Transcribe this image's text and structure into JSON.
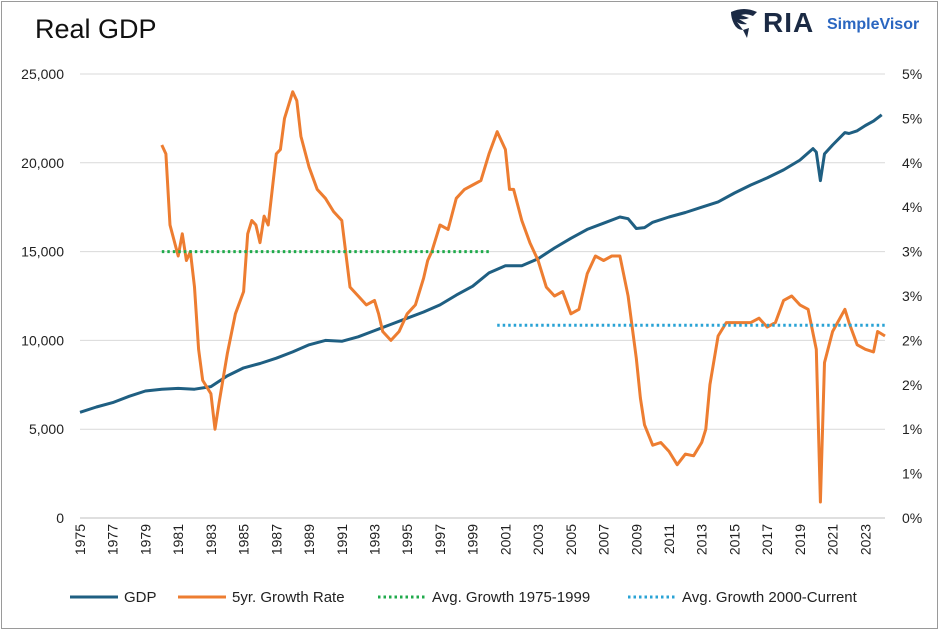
{
  "title": "Real GDP",
  "logo": {
    "brand": "RIA",
    "product": "SimpleVisor"
  },
  "chart_data": {
    "type": "line",
    "title": "Real GDP",
    "xlim": [
      1975,
      2024.2
    ],
    "ylim_left": [
      0,
      25000
    ],
    "ylim_right": [
      0,
      5
    ],
    "x_tick_labels": [
      "1975",
      "1977",
      "1979",
      "1981",
      "1983",
      "1985",
      "1987",
      "1989",
      "1991",
      "1993",
      "1995",
      "1997",
      "1999",
      "2001",
      "2003",
      "2005",
      "2007",
      "2009",
      "2011",
      "2013",
      "2015",
      "2017",
      "2019",
      "2021",
      "2023"
    ],
    "y_left_ticks": [
      "0",
      "5,000",
      "10,000",
      "15,000",
      "20,000",
      "25,000"
    ],
    "y_right_ticks": [
      "0%",
      "1%",
      "1%",
      "2%",
      "2%",
      "3%",
      "3%",
      "4%",
      "4%",
      "5%",
      "5%"
    ],
    "legend_position": "bottom",
    "grid": "horizontal",
    "series": [
      {
        "name": "GDP",
        "axis": "left",
        "color": "#1f5f82",
        "style": "solid",
        "points": [
          [
            1975,
            5950
          ],
          [
            1976,
            6250
          ],
          [
            1977,
            6500
          ],
          [
            1978,
            6850
          ],
          [
            1979,
            7150
          ],
          [
            1980,
            7250
          ],
          [
            1981,
            7300
          ],
          [
            1982,
            7250
          ],
          [
            1983,
            7400
          ],
          [
            1984,
            8000
          ],
          [
            1985,
            8450
          ],
          [
            1986,
            8700
          ],
          [
            1987,
            9000
          ],
          [
            1988,
            9350
          ],
          [
            1989,
            9750
          ],
          [
            1990,
            10000
          ],
          [
            1991,
            9950
          ],
          [
            1992,
            10200
          ],
          [
            1993,
            10550
          ],
          [
            1994,
            10900
          ],
          [
            1995,
            11250
          ],
          [
            1996,
            11600
          ],
          [
            1997,
            12000
          ],
          [
            1998,
            12550
          ],
          [
            1999,
            13050
          ],
          [
            2000,
            13800
          ],
          [
            2001,
            14200
          ],
          [
            2002,
            14200
          ],
          [
            2003,
            14600
          ],
          [
            2004,
            15200
          ],
          [
            2005,
            15750
          ],
          [
            2006,
            16250
          ],
          [
            2007,
            16600
          ],
          [
            2008,
            16950
          ],
          [
            2008.5,
            16850
          ],
          [
            2009,
            16300
          ],
          [
            2009.5,
            16350
          ],
          [
            2010,
            16650
          ],
          [
            2011,
            16950
          ],
          [
            2012,
            17200
          ],
          [
            2013,
            17500
          ],
          [
            2014,
            17800
          ],
          [
            2015,
            18300
          ],
          [
            2016,
            18750
          ],
          [
            2017,
            19150
          ],
          [
            2018,
            19600
          ],
          [
            2019,
            20150
          ],
          [
            2019.8,
            20800
          ],
          [
            2020,
            20600
          ],
          [
            2020.25,
            19000
          ],
          [
            2020.5,
            20500
          ],
          [
            2021,
            21000
          ],
          [
            2021.75,
            21700
          ],
          [
            2022,
            21650
          ],
          [
            2022.5,
            21800
          ],
          [
            2023,
            22100
          ],
          [
            2023.5,
            22350
          ],
          [
            2024,
            22700
          ]
        ]
      },
      {
        "name": "5yr. Growth Rate",
        "axis": "right",
        "color": "#ed7d31",
        "style": "solid",
        "points": [
          [
            1980,
            4.2
          ],
          [
            1980.25,
            4.1
          ],
          [
            1980.5,
            3.3
          ],
          [
            1981,
            2.95
          ],
          [
            1981.25,
            3.2
          ],
          [
            1981.5,
            2.9
          ],
          [
            1981.75,
            3.0
          ],
          [
            1982,
            2.6
          ],
          [
            1982.25,
            1.9
          ],
          [
            1982.5,
            1.55
          ],
          [
            1983,
            1.4
          ],
          [
            1983.25,
            1.0
          ],
          [
            1983.5,
            1.3
          ],
          [
            1984,
            1.85
          ],
          [
            1984.5,
            2.3
          ],
          [
            1985,
            2.55
          ],
          [
            1985.25,
            3.2
          ],
          [
            1985.5,
            3.35
          ],
          [
            1985.75,
            3.3
          ],
          [
            1986,
            3.1
          ],
          [
            1986.25,
            3.4
          ],
          [
            1986.5,
            3.3
          ],
          [
            1987,
            4.1
          ],
          [
            1987.25,
            4.15
          ],
          [
            1987.5,
            4.5
          ],
          [
            1988,
            4.8
          ],
          [
            1988.25,
            4.7
          ],
          [
            1988.5,
            4.3
          ],
          [
            1989,
            3.95
          ],
          [
            1989.5,
            3.7
          ],
          [
            1990,
            3.6
          ],
          [
            1990.5,
            3.45
          ],
          [
            1991,
            3.35
          ],
          [
            1991.5,
            2.6
          ],
          [
            1992,
            2.5
          ],
          [
            1992.5,
            2.4
          ],
          [
            1993,
            2.45
          ],
          [
            1993.25,
            2.3
          ],
          [
            1993.5,
            2.1
          ],
          [
            1994,
            2.0
          ],
          [
            1994.5,
            2.1
          ],
          [
            1995,
            2.3
          ],
          [
            1995.5,
            2.4
          ],
          [
            1996,
            2.7
          ],
          [
            1996.25,
            2.9
          ],
          [
            1996.5,
            3.0
          ],
          [
            1997,
            3.3
          ],
          [
            1997.5,
            3.25
          ],
          [
            1998,
            3.6
          ],
          [
            1998.5,
            3.7
          ],
          [
            1999,
            3.75
          ],
          [
            1999.5,
            3.8
          ],
          [
            2000,
            4.1
          ],
          [
            2000.5,
            4.35
          ],
          [
            2001,
            4.15
          ],
          [
            2001.25,
            3.7
          ],
          [
            2001.5,
            3.7
          ],
          [
            2002,
            3.35
          ],
          [
            2002.5,
            3.1
          ],
          [
            2003,
            2.9
          ],
          [
            2003.5,
            2.6
          ],
          [
            2004,
            2.5
          ],
          [
            2004.5,
            2.55
          ],
          [
            2005,
            2.3
          ],
          [
            2005.5,
            2.35
          ],
          [
            2006,
            2.75
          ],
          [
            2006.5,
            2.95
          ],
          [
            2007,
            2.9
          ],
          [
            2007.5,
            2.95
          ],
          [
            2008,
            2.95
          ],
          [
            2008.5,
            2.5
          ],
          [
            2009,
            1.8
          ],
          [
            2009.25,
            1.35
          ],
          [
            2009.5,
            1.05
          ],
          [
            2010,
            0.82
          ],
          [
            2010.5,
            0.85
          ],
          [
            2011,
            0.75
          ],
          [
            2011.5,
            0.6
          ],
          [
            2012,
            0.72
          ],
          [
            2012.5,
            0.7
          ],
          [
            2013,
            0.85
          ],
          [
            2013.25,
            1.0
          ],
          [
            2013.5,
            1.5
          ],
          [
            2014,
            2.05
          ],
          [
            2014.5,
            2.2
          ],
          [
            2015,
            2.2
          ],
          [
            2015.5,
            2.2
          ],
          [
            2016,
            2.2
          ],
          [
            2016.5,
            2.25
          ],
          [
            2017,
            2.15
          ],
          [
            2017.5,
            2.2
          ],
          [
            2018,
            2.45
          ],
          [
            2018.5,
            2.5
          ],
          [
            2019,
            2.4
          ],
          [
            2019.5,
            2.35
          ],
          [
            2020,
            1.9
          ],
          [
            2020.25,
            0.18
          ],
          [
            2020.5,
            1.75
          ],
          [
            2021,
            2.1
          ],
          [
            2021.75,
            2.35
          ],
          [
            2022,
            2.2
          ],
          [
            2022.5,
            1.95
          ],
          [
            2023,
            1.9
          ],
          [
            2023.5,
            1.87
          ],
          [
            2023.75,
            2.1
          ],
          [
            2024.2,
            2.05
          ]
        ]
      },
      {
        "name": "Avg. Growth 1975-1999",
        "axis": "right",
        "color": "#1faa4b",
        "style": "dotted",
        "points": [
          [
            1980,
            3.0
          ],
          [
            2000,
            3.0
          ]
        ]
      },
      {
        "name": "Avg. Growth 2000-Current",
        "axis": "right",
        "color": "#2aa3d5",
        "style": "dotted",
        "points": [
          [
            2000.5,
            2.17
          ],
          [
            2024.2,
            2.17
          ]
        ]
      }
    ]
  }
}
